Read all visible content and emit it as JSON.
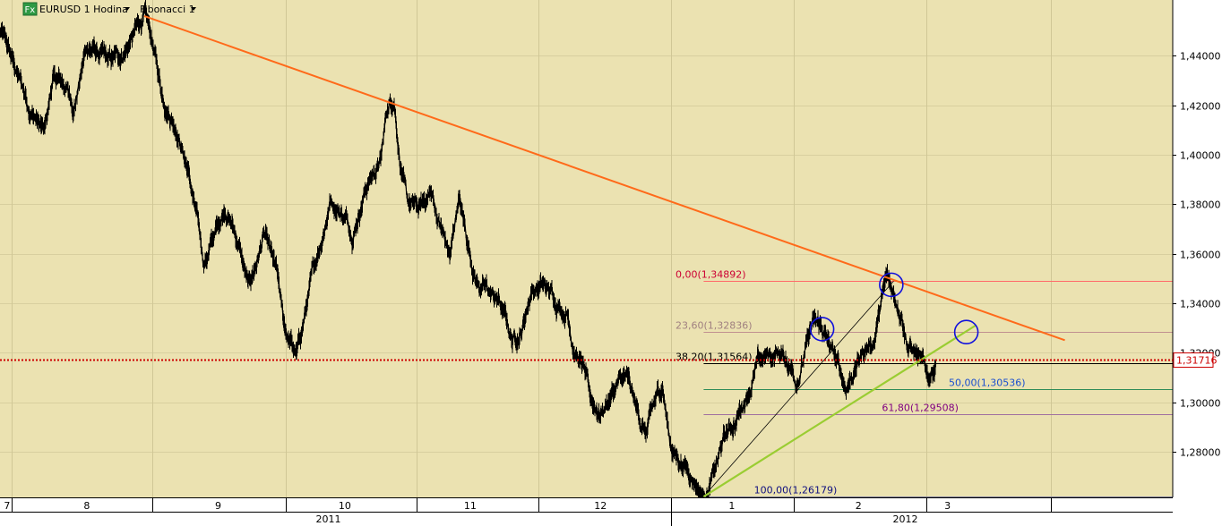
{
  "header": {
    "fx_badge": "Fx",
    "symbol_label": "EURUSD 1 Hodina",
    "study_label": "Fibonacci 1"
  },
  "chart_data": {
    "type": "line",
    "symbol": "EURUSD",
    "timeframe": "1 Hodina",
    "colors": {
      "background": "#ebe2b1",
      "price": "#000000",
      "trendline": "#ff6a1a",
      "support_line": "#9acd32",
      "fib_guide": "#000000",
      "current_price": "#cc0000",
      "circle": "#1010dd"
    },
    "ylim": [
      1.2615,
      1.4625
    ],
    "y_ticks": [
      "1,44000",
      "1,42000",
      "1,40000",
      "1,38000",
      "1,36000",
      "1,34000",
      "1,32000",
      "1,30000",
      "1,28000"
    ],
    "y_tick_values": [
      1.44,
      1.42,
      1.4,
      1.38,
      1.36,
      1.34,
      1.32,
      1.3,
      1.28
    ],
    "xlim": [
      0,
      100
    ],
    "x_tick_labels": [
      {
        "label": "7",
        "x": 0.6
      },
      {
        "label": "8",
        "x": 7.4
      },
      {
        "label": "9",
        "x": 18.6
      },
      {
        "label": "10",
        "x": 29.4
      },
      {
        "label": "11",
        "x": 40.1
      },
      {
        "label": "12",
        "x": 51.2
      },
      {
        "label": "1",
        "x": 62.4
      },
      {
        "label": "2",
        "x": 73.2
      },
      {
        "label": "3",
        "x": 80.8
      }
    ],
    "x_month_boundaries": [
      1.0,
      13.0,
      24.4,
      35.5,
      45.9,
      57.2,
      67.7,
      79.0,
      89.6
    ],
    "x_year_labels": [
      {
        "label": "2011",
        "x": 28.0
      },
      {
        "label": "2012",
        "x": 77.2
      }
    ],
    "x_year_boundary": 57.2,
    "price_series_waypoints": [
      [
        0.0,
        1.45
      ],
      [
        1.0,
        1.438
      ],
      [
        2.3,
        1.422
      ],
      [
        3.2,
        1.414
      ],
      [
        3.8,
        1.408
      ],
      [
        4.5,
        1.43
      ],
      [
        5.5,
        1.428
      ],
      [
        6.3,
        1.42
      ],
      [
        7.4,
        1.444
      ],
      [
        8.3,
        1.441
      ],
      [
        9.3,
        1.436
      ],
      [
        10.3,
        1.44
      ],
      [
        11.4,
        1.448
      ],
      [
        12.3,
        1.456
      ],
      [
        13.0,
        1.444
      ],
      [
        13.8,
        1.425
      ],
      [
        15.1,
        1.412
      ],
      [
        16.0,
        1.395
      ],
      [
        16.9,
        1.37
      ],
      [
        17.4,
        1.356
      ],
      [
        18.5,
        1.37
      ],
      [
        19.2,
        1.38
      ],
      [
        20.3,
        1.365
      ],
      [
        21.2,
        1.345
      ],
      [
        22.5,
        1.367
      ],
      [
        23.6,
        1.35
      ],
      [
        24.2,
        1.33
      ],
      [
        25.3,
        1.318
      ],
      [
        26.2,
        1.34
      ],
      [
        27.1,
        1.36
      ],
      [
        28.2,
        1.383
      ],
      [
        29.2,
        1.377
      ],
      [
        30.1,
        1.37
      ],
      [
        31.2,
        1.388
      ],
      [
        32.5,
        1.398
      ],
      [
        33.0,
        1.418
      ],
      [
        33.6,
        1.424
      ],
      [
        34.1,
        1.4
      ],
      [
        34.7,
        1.38
      ],
      [
        35.8,
        1.377
      ],
      [
        36.7,
        1.385
      ],
      [
        37.5,
        1.372
      ],
      [
        38.4,
        1.358
      ],
      [
        39.1,
        1.383
      ],
      [
        39.8,
        1.366
      ],
      [
        40.6,
        1.35
      ],
      [
        41.5,
        1.345
      ],
      [
        42.6,
        1.34
      ],
      [
        43.7,
        1.325
      ],
      [
        44.5,
        1.33
      ],
      [
        45.3,
        1.346
      ],
      [
        46.2,
        1.347
      ],
      [
        47.3,
        1.342
      ],
      [
        48.4,
        1.337
      ],
      [
        49.0,
        1.322
      ],
      [
        49.8,
        1.313
      ],
      [
        50.3,
        1.3
      ],
      [
        51.2,
        1.296
      ],
      [
        52.6,
        1.307
      ],
      [
        53.4,
        1.309
      ],
      [
        54.2,
        1.297
      ],
      [
        55.1,
        1.287
      ],
      [
        55.8,
        1.298
      ],
      [
        56.5,
        1.307
      ],
      [
        57.1,
        1.285
      ],
      [
        57.6,
        1.279
      ],
      [
        58.6,
        1.274
      ],
      [
        59.3,
        1.269
      ],
      [
        60.0,
        1.262
      ],
      [
        61.0,
        1.272
      ],
      [
        61.7,
        1.284
      ],
      [
        62.8,
        1.293
      ],
      [
        63.6,
        1.303
      ],
      [
        64.6,
        1.315
      ],
      [
        65.5,
        1.318
      ],
      [
        66.4,
        1.32
      ],
      [
        67.3,
        1.316
      ],
      [
        67.9,
        1.31
      ],
      [
        68.6,
        1.32
      ],
      [
        69.3,
        1.331
      ],
      [
        70.1,
        1.329
      ],
      [
        71.1,
        1.318
      ],
      [
        72.1,
        1.306
      ],
      [
        73.0,
        1.315
      ],
      [
        73.8,
        1.322
      ],
      [
        74.5,
        1.325
      ],
      [
        75.1,
        1.339
      ],
      [
        75.6,
        1.349
      ],
      [
        76.2,
        1.343
      ],
      [
        76.9,
        1.338
      ],
      [
        77.4,
        1.325
      ],
      [
        78.1,
        1.32
      ],
      [
        78.6,
        1.314
      ],
      [
        79.2,
        1.31
      ],
      [
        79.8,
        1.317
      ]
    ],
    "trendline": {
      "from": [
        12.3,
        1.456
      ],
      "to": [
        90.8,
        1.325
      ]
    },
    "support_line": {
      "from": [
        60.0,
        1.2618
      ],
      "to": [
        83.2,
        1.331
      ]
    },
    "fib_guide": {
      "from": [
        60.0,
        1.2618
      ],
      "to": [
        76.2,
        1.3489
      ]
    },
    "fib_levels": [
      {
        "label": "0,00(1,34892)",
        "value": 1.34892,
        "line_color": "#ff6a6a",
        "text_color": "#cc0033",
        "x_start": 60.0,
        "label_x": 57.6
      },
      {
        "label": "23,60(1,32836)",
        "value": 1.32836,
        "line_color": "#c09090",
        "text_color": "#a08080",
        "x_start": 60.0,
        "label_x": 57.6
      },
      {
        "label": "38,20(1,31564)",
        "value": 1.31564,
        "line_color": "#000000",
        "text_color": "#000000",
        "x_start": 60.0,
        "label_x": 57.6
      },
      {
        "label": "50,00(1,30536)",
        "value": 1.30536,
        "line_color": "#2e8b57",
        "text_color": "#1a4fd0",
        "x_start": 60.0,
        "label_x": 80.9
      },
      {
        "label": "61,80(1,29508)",
        "value": 1.29508,
        "line_color": "#a070a0",
        "text_color": "#800080",
        "x_start": 60.0,
        "label_x": 75.2
      },
      {
        "label": "100,00(1,26179)",
        "value": 1.26179,
        "line_color": "#8080a0",
        "text_color": "#101080",
        "x_start": 60.0,
        "label_x": 64.3
      }
    ],
    "current_price": {
      "value": 1.31716,
      "label": "1,31716"
    },
    "circles": [
      {
        "x": 70.1,
        "y": 1.3295
      },
      {
        "x": 76.0,
        "y": 1.3474
      },
      {
        "x": 82.4,
        "y": 1.3283
      }
    ]
  }
}
